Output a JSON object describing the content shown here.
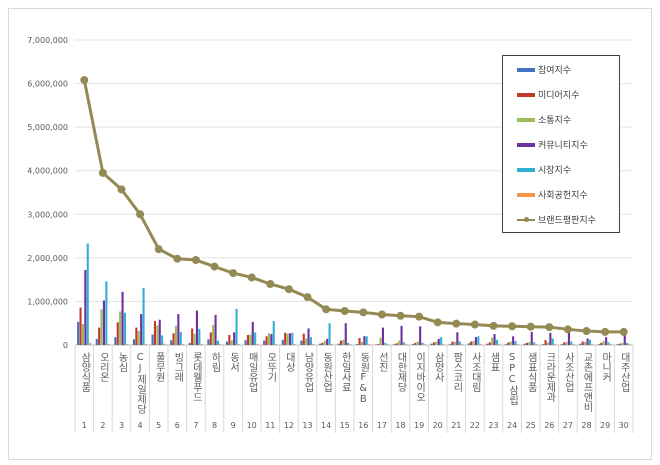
{
  "chart_data": {
    "type": "bar",
    "title": "",
    "xlabel": "",
    "ylabel": "",
    "ylim": [
      0,
      7000000
    ],
    "yticks": [
      "0",
      "1,000,000",
      "2,000,000",
      "3,000,000",
      "4,000,000",
      "5,000,000",
      "6,000,000",
      "7,000,000"
    ],
    "grid": true,
    "legend_position": "top-right",
    "categories": [
      "삼양식품",
      "오리온",
      "농심",
      "CJ제일제당",
      "풀무원",
      "빙그레",
      "롯데웰푸드",
      "하림",
      "동서",
      "매일유업",
      "오뚜기",
      "대상",
      "남양유업",
      "동원산업",
      "한일사료",
      "동원F&B",
      "선진",
      "대한제당",
      "이지바이오",
      "삼양사",
      "팜스코리",
      "사조대림",
      "샘표",
      "SPC삼립",
      "샘표식품",
      "크라운제과",
      "사조산업",
      "교촌에프앤비",
      "마니커",
      "대주산업"
    ],
    "ranks": [
      "1",
      "2",
      "3",
      "4",
      "5",
      "6",
      "7",
      "8",
      "9",
      "10",
      "11",
      "12",
      "13",
      "14",
      "15",
      "16",
      "17",
      "18",
      "19",
      "20",
      "21",
      "22",
      "23",
      "24",
      "25",
      "26",
      "27",
      "28",
      "29",
      "30"
    ],
    "series": [
      {
        "name": "참여지수",
        "type": "bar",
        "color": "#4472c4",
        "values": [
          530000,
          140000,
          180000,
          130000,
          240000,
          110000,
          50000,
          130000,
          80000,
          110000,
          100000,
          120000,
          100000,
          30000,
          30000,
          20000,
          10000,
          20000,
          20000,
          30000,
          20000,
          40000,
          30000,
          20000,
          30000,
          20000,
          20000,
          30000,
          20000,
          20000
        ]
      },
      {
        "name": "미디어지수",
        "type": "bar",
        "color": "#c0392b",
        "values": [
          860000,
          400000,
          520000,
          400000,
          550000,
          270000,
          380000,
          290000,
          230000,
          230000,
          200000,
          280000,
          260000,
          50000,
          100000,
          160000,
          20000,
          40000,
          50000,
          60000,
          80000,
          80000,
          60000,
          60000,
          50000,
          110000,
          60000,
          80000,
          50000,
          30000
        ]
      },
      {
        "name": "소통지수",
        "type": "bar",
        "color": "#9bbb59",
        "values": [
          480000,
          820000,
          770000,
          320000,
          450000,
          440000,
          260000,
          460000,
          110000,
          240000,
          270000,
          260000,
          150000,
          100000,
          120000,
          70000,
          170000,
          100000,
          80000,
          80000,
          70000,
          90000,
          170000,
          80000,
          70000,
          60000,
          70000,
          70000,
          90000,
          50000
        ]
      },
      {
        "name": "커뮤니티지수",
        "type": "bar",
        "color": "#7030a0",
        "values": [
          1720000,
          1020000,
          1220000,
          710000,
          580000,
          710000,
          790000,
          690000,
          290000,
          530000,
          250000,
          270000,
          380000,
          140000,
          500000,
          200000,
          400000,
          440000,
          430000,
          140000,
          290000,
          180000,
          250000,
          200000,
          300000,
          280000,
          320000,
          150000,
          180000,
          300000
        ]
      },
      {
        "name": "시장지수",
        "type": "bar",
        "color": "#31b0d5",
        "values": [
          2330000,
          1460000,
          740000,
          1310000,
          220000,
          300000,
          370000,
          100000,
          830000,
          290000,
          550000,
          280000,
          180000,
          500000,
          50000,
          200000,
          50000,
          60000,
          50000,
          180000,
          80000,
          200000,
          120000,
          90000,
          60000,
          150000,
          80000,
          120000,
          60000,
          50000
        ]
      },
      {
        "name": "사회공헌지수",
        "type": "bar",
        "color": "#f79646",
        "values": [
          50000,
          20000,
          20000,
          20000,
          30000,
          20000,
          20000,
          20000,
          20000,
          20000,
          20000,
          20000,
          20000,
          20000,
          20000,
          20000,
          20000,
          20000,
          20000,
          20000,
          20000,
          20000,
          20000,
          20000,
          20000,
          20000,
          20000,
          20000,
          20000,
          20000
        ]
      },
      {
        "name": "브랜드평판지수",
        "type": "line",
        "color": "#948a54",
        "values": [
          6080000,
          3950000,
          3570000,
          3000000,
          2200000,
          1980000,
          1950000,
          1800000,
          1650000,
          1550000,
          1400000,
          1280000,
          1100000,
          820000,
          780000,
          750000,
          700000,
          670000,
          650000,
          520000,
          490000,
          470000,
          440000,
          430000,
          420000,
          410000,
          360000,
          320000,
          300000,
          300000
        ]
      }
    ]
  }
}
